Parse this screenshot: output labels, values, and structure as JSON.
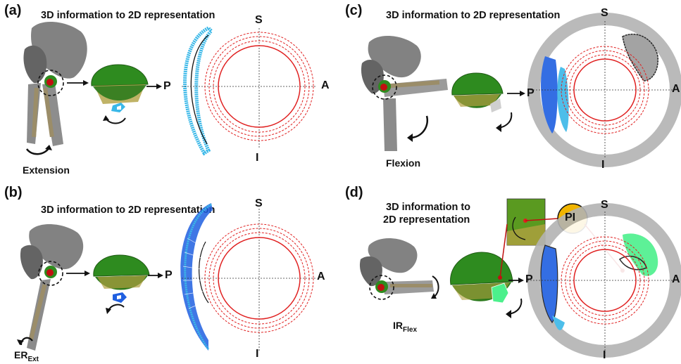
{
  "panels": [
    {
      "label": "(a)",
      "title": "3D information to 2D representation",
      "motion": "Extension",
      "motion_sub": "",
      "S": "S",
      "I": "I",
      "A": "A",
      "P": "P"
    },
    {
      "label": "(b)",
      "title": "3D information to 2D representation",
      "motion": "ER",
      "motion_sub": "Ext",
      "S": "S",
      "I": "I",
      "A": "A",
      "P": "P"
    },
    {
      "label": "(c)",
      "title": "3D information to 2D representation",
      "motion": "Flexion",
      "motion_sub": "",
      "S": "S",
      "I": "I",
      "A": "A",
      "P": "P"
    },
    {
      "label": "(d)",
      "title_line1": "3D information to",
      "title_line2": "2D representation",
      "motion": "IR",
      "motion_sub": "Flex",
      "S": "S",
      "I": "I",
      "A": "A",
      "P": "P",
      "badge": "PI"
    }
  ],
  "colors": {
    "green": "#2e8b1f",
    "red": "#e02020",
    "cyan": "#3ab8e8",
    "blue": "#1f5fe0",
    "grey": "#9a9a9a",
    "yellow": "#f0b400"
  }
}
